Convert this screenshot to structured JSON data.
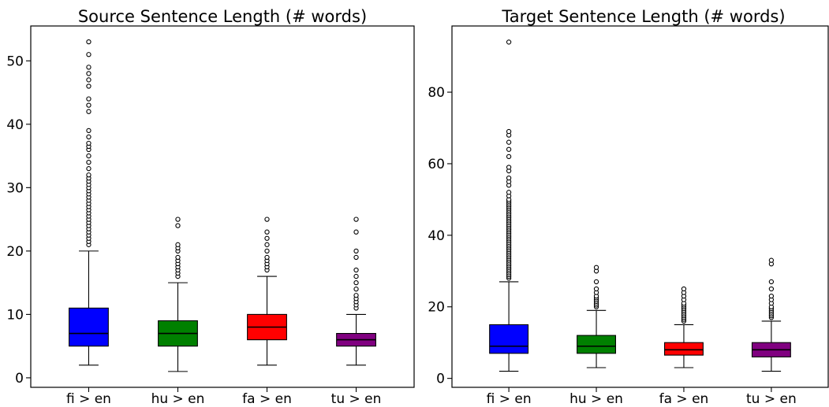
{
  "chart_data": [
    {
      "type": "box",
      "title": "Source Sentence Length (# words)",
      "categories": [
        "fi > en",
        "hu > en",
        "fa > en",
        "tu > en"
      ],
      "colors": [
        "#0000ff",
        "#008000",
        "#ff0000",
        "#800080"
      ],
      "yticks": [
        0,
        10,
        20,
        30,
        40,
        50
      ],
      "ylim": [
        -1.5,
        55.5
      ],
      "grid": false,
      "boxes": [
        {
          "whisker_low": 2,
          "q1": 5,
          "median": 7,
          "q3": 11,
          "whisker_high": 20,
          "fliers": [
            21,
            21.5,
            22,
            22.5,
            23,
            23.5,
            24,
            24.5,
            25,
            25.5,
            26,
            26.5,
            27,
            27.5,
            28,
            28.5,
            29,
            29.5,
            30,
            30.5,
            31,
            31.5,
            32,
            33,
            34,
            35,
            36,
            36.5,
            37,
            38,
            39,
            42,
            43,
            44,
            46,
            47,
            48,
            49,
            51,
            53
          ]
        },
        {
          "whisker_low": 1,
          "q1": 5,
          "median": 7,
          "q3": 9,
          "whisker_high": 15,
          "fliers": [
            16,
            16.5,
            17,
            17.5,
            18,
            18.5,
            19,
            20,
            20.5,
            21,
            24,
            25
          ]
        },
        {
          "whisker_low": 2,
          "q1": 6,
          "median": 8,
          "q3": 10,
          "whisker_high": 16,
          "fliers": [
            17,
            17.5,
            18,
            18.5,
            19,
            20,
            21,
            22,
            23,
            25
          ]
        },
        {
          "whisker_low": 2,
          "q1": 5,
          "median": 6,
          "q3": 7,
          "whisker_high": 10,
          "fliers": [
            11,
            11.5,
            12,
            12.5,
            13,
            14,
            15,
            16,
            17,
            19,
            20,
            23,
            25
          ]
        }
      ]
    },
    {
      "type": "box",
      "title": "Target Sentence Length (# words)",
      "categories": [
        "fi > en",
        "hu > en",
        "fa > en",
        "tu > en"
      ],
      "colors": [
        "#0000ff",
        "#008000",
        "#ff0000",
        "#800080"
      ],
      "yticks": [
        0,
        20,
        40,
        60,
        80
      ],
      "ylim": [
        -2.5,
        98.5
      ],
      "grid": false,
      "boxes": [
        {
          "whisker_low": 2,
          "q1": 7,
          "median": 9,
          "q3": 15,
          "whisker_high": 27,
          "fliers": [
            28,
            28.5,
            29,
            29.5,
            30,
            30.5,
            31,
            31.5,
            32,
            32.5,
            33,
            33.5,
            34,
            34.5,
            35,
            35.5,
            36,
            36.5,
            37,
            37.5,
            38,
            38.5,
            39,
            39.5,
            40,
            40.5,
            41,
            41.5,
            42,
            42.5,
            43,
            43.5,
            44,
            44.5,
            45,
            45.5,
            46,
            46.5,
            47,
            47.5,
            48,
            48.5,
            49,
            49.5,
            50,
            51,
            52,
            54,
            55,
            56,
            58,
            59,
            62,
            64,
            66,
            68,
            69,
            94
          ]
        },
        {
          "whisker_low": 3,
          "q1": 7,
          "median": 9,
          "q3": 12,
          "whisker_high": 19,
          "fliers": [
            20,
            20.5,
            21,
            21.5,
            22,
            22.5,
            23,
            24,
            25,
            27,
            30,
            31
          ]
        },
        {
          "whisker_low": 3,
          "q1": 6.5,
          "median": 8,
          "q3": 10,
          "whisker_high": 15,
          "fliers": [
            16,
            16.5,
            17,
            17.5,
            18,
            18.5,
            19,
            19.5,
            20,
            20.5,
            21,
            22,
            23,
            24,
            25
          ]
        },
        {
          "whisker_low": 2,
          "q1": 6,
          "median": 8,
          "q3": 10,
          "whisker_high": 16,
          "fliers": [
            17,
            17.5,
            18,
            18.5,
            19,
            19.5,
            20,
            21,
            22,
            23,
            25,
            27,
            32,
            33
          ]
        }
      ]
    }
  ]
}
